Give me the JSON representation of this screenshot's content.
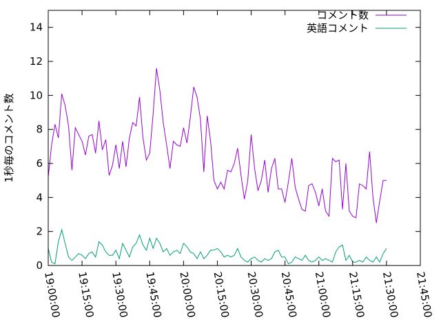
{
  "chart_data": {
    "type": "line",
    "title": "",
    "xlabel": "",
    "ylabel": "1秒毎のコメント数",
    "ylim": [
      0,
      15
    ],
    "yticks": [
      0,
      2,
      4,
      6,
      8,
      10,
      12,
      14
    ],
    "x_range": [
      "19:00:00",
      "21:45:00"
    ],
    "x_ticks": [
      "19:00:00",
      "19:15:00",
      "19:30:00",
      "19:45:00",
      "20:00:00",
      "20:15:00",
      "20:30:00",
      "20:45:00",
      "21:00:00",
      "21:15:00",
      "21:30:00",
      "21:45:00"
    ],
    "grid": false,
    "legend_position": "top-right",
    "x": [
      "19:00:00",
      "19:01:30",
      "19:03:00",
      "19:04:30",
      "19:06:00",
      "19:07:30",
      "19:09:00",
      "19:10:30",
      "19:12:00",
      "19:13:30",
      "19:15:00",
      "19:16:30",
      "19:18:00",
      "19:19:30",
      "19:21:00",
      "19:22:30",
      "19:24:00",
      "19:25:30",
      "19:27:00",
      "19:28:30",
      "19:30:00",
      "19:31:30",
      "19:33:00",
      "19:34:30",
      "19:36:00",
      "19:37:30",
      "19:39:00",
      "19:40:30",
      "19:42:00",
      "19:43:30",
      "19:45:00",
      "19:46:30",
      "19:48:00",
      "19:49:30",
      "19:51:00",
      "19:52:30",
      "19:54:00",
      "19:55:30",
      "19:57:00",
      "19:58:30",
      "20:00:00",
      "20:01:30",
      "20:03:00",
      "20:04:30",
      "20:06:00",
      "20:07:30",
      "20:09:00",
      "20:10:30",
      "20:12:00",
      "20:13:30",
      "20:15:00",
      "20:16:30",
      "20:18:00",
      "20:19:30",
      "20:21:00",
      "20:22:30",
      "20:24:00",
      "20:25:30",
      "20:27:00",
      "20:28:30",
      "20:30:00",
      "20:31:30",
      "20:33:00",
      "20:34:30",
      "20:36:00",
      "20:37:30",
      "20:39:00",
      "20:40:30",
      "20:42:00",
      "20:43:30",
      "20:45:00",
      "20:46:30",
      "20:48:00",
      "20:49:30",
      "20:51:00",
      "20:52:30",
      "20:54:00",
      "20:55:30",
      "20:57:00",
      "20:58:30",
      "21:00:00",
      "21:01:30",
      "21:03:00",
      "21:04:30",
      "21:06:00",
      "21:07:30",
      "21:09:00",
      "21:10:30",
      "21:12:00",
      "21:13:30",
      "21:15:00",
      "21:16:30",
      "21:18:00",
      "21:19:30",
      "21:21:00",
      "21:22:30",
      "21:24:00",
      "21:25:30",
      "21:27:00",
      "21:28:30",
      "21:30:00"
    ],
    "series": [
      {
        "name": "コメント数",
        "color": "#9400d3",
        "values": [
          5.2,
          7.1,
          8.3,
          7.5,
          10.1,
          9.4,
          8.2,
          5.6,
          8.1,
          7.7,
          7.3,
          6.5,
          7.6,
          7.7,
          6.6,
          8.5,
          6.8,
          7.4,
          5.3,
          5.9,
          7.1,
          5.7,
          7.3,
          5.8,
          7.5,
          8.4,
          8.2,
          9.9,
          7.5,
          6.2,
          6.6,
          8.9,
          11.6,
          10.3,
          8.4,
          7.1,
          5.7,
          7.3,
          7.1,
          7.0,
          8.1,
          7.2,
          8.7,
          10.5,
          9.9,
          8.6,
          5.5,
          8.8,
          7.3,
          5.0,
          4.5,
          4.9,
          4.5,
          5.6,
          5.5,
          6.0,
          6.9,
          5.3,
          3.9,
          5.0,
          7.7,
          5.7,
          4.4,
          5.0,
          6.2,
          4.3,
          5.7,
          6.3,
          4.5,
          4.5,
          3.7,
          4.9,
          6.3,
          4.6,
          3.9,
          3.3,
          3.2,
          4.7,
          4.8,
          4.3,
          3.5,
          4.5,
          3.2,
          2.9,
          6.3,
          6.1,
          6.2,
          3.3,
          6.0,
          3.2,
          2.9,
          2.8,
          4.8,
          4.7,
          4.5,
          6.7,
          4.0,
          2.5,
          3.8,
          5.0,
          5.0
        ]
      },
      {
        "name": "英語コメント",
        "color": "#009e73",
        "values": [
          1.0,
          0.2,
          0.1,
          1.4,
          2.1,
          1.3,
          0.5,
          0.3,
          0.5,
          0.7,
          0.6,
          0.4,
          0.7,
          0.8,
          0.5,
          1.4,
          1.2,
          0.8,
          0.6,
          0.6,
          0.9,
          0.4,
          1.3,
          0.9,
          0.5,
          1.1,
          1.3,
          1.8,
          1.2,
          0.9,
          1.6,
          1.0,
          1.6,
          1.3,
          0.8,
          1.0,
          0.6,
          0.8,
          0.9,
          0.7,
          1.3,
          1.1,
          0.8,
          0.7,
          0.4,
          0.8,
          0.4,
          0.6,
          0.9,
          0.9,
          1.0,
          0.8,
          0.5,
          0.6,
          0.5,
          0.6,
          1.0,
          0.5,
          0.3,
          0.2,
          0.4,
          0.5,
          0.3,
          0.2,
          0.4,
          0.3,
          0.4,
          0.8,
          0.9,
          0.5,
          0.5,
          0.1,
          0.2,
          0.5,
          0.4,
          0.3,
          0.6,
          0.3,
          0.2,
          0.3,
          0.5,
          0.3,
          0.4,
          0.3,
          0.2,
          0.8,
          1.1,
          1.2,
          0.3,
          0.6,
          0.2,
          0.2,
          0.3,
          0.2,
          0.5,
          0.3,
          0.2,
          0.5,
          0.2,
          0.7,
          1.0
        ]
      }
    ]
  }
}
